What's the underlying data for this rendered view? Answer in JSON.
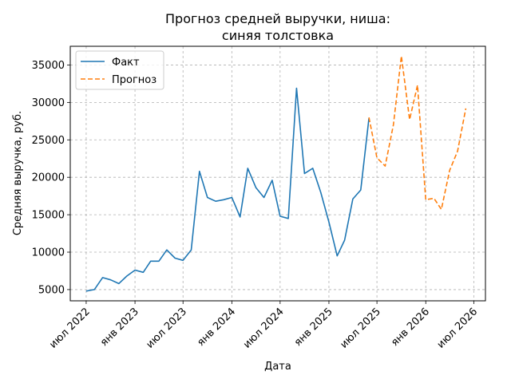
{
  "chart_data": {
    "type": "line",
    "title_line1": "Прогноз средней выручки, ниша:",
    "title_line2": "синяя толстовка",
    "xlabel": "Дата",
    "ylabel": "Средняя выручка, руб.",
    "xlim": [
      "2022-05-02",
      "2026-08-14"
    ],
    "ylim": [
      3500,
      37500
    ],
    "grid": true,
    "legend_position": "upper-left",
    "x_ticks": [
      {
        "date": "2022-07-01",
        "label": "июл 2022"
      },
      {
        "date": "2023-01-01",
        "label": "янв 2023"
      },
      {
        "date": "2023-07-01",
        "label": "июл 2023"
      },
      {
        "date": "2024-01-01",
        "label": "янв 2024"
      },
      {
        "date": "2024-07-01",
        "label": "июл 2024"
      },
      {
        "date": "2025-01-01",
        "label": "янв 2025"
      },
      {
        "date": "2025-07-01",
        "label": "июл 2025"
      },
      {
        "date": "2026-01-01",
        "label": "янв 2026"
      },
      {
        "date": "2026-07-01",
        "label": "июл 2026"
      }
    ],
    "y_ticks": [
      5000,
      10000,
      15000,
      20000,
      25000,
      30000,
      35000
    ],
    "series": [
      {
        "name": "Факт",
        "color": "#1f77b4",
        "style": "solid",
        "points": [
          [
            "2022-07-01",
            4800
          ],
          [
            "2022-08-01",
            5000
          ],
          [
            "2022-09-01",
            6600
          ],
          [
            "2022-10-01",
            6300
          ],
          [
            "2022-11-01",
            5800
          ],
          [
            "2022-12-01",
            6800
          ],
          [
            "2023-01-01",
            7600
          ],
          [
            "2023-02-01",
            7300
          ],
          [
            "2023-03-01",
            8800
          ],
          [
            "2023-04-01",
            8800
          ],
          [
            "2023-05-01",
            10300
          ],
          [
            "2023-06-01",
            9200
          ],
          [
            "2023-07-01",
            8900
          ],
          [
            "2023-08-01",
            10300
          ],
          [
            "2023-09-01",
            20800
          ],
          [
            "2023-10-01",
            17300
          ],
          [
            "2023-11-01",
            16800
          ],
          [
            "2023-12-01",
            17000
          ],
          [
            "2024-01-01",
            17300
          ],
          [
            "2024-02-01",
            14700
          ],
          [
            "2024-03-01",
            21200
          ],
          [
            "2024-04-01",
            18600
          ],
          [
            "2024-05-01",
            17300
          ],
          [
            "2024-06-01",
            19600
          ],
          [
            "2024-07-01",
            14800
          ],
          [
            "2024-08-01",
            14500
          ],
          [
            "2024-09-01",
            31900
          ],
          [
            "2024-10-01",
            20500
          ],
          [
            "2024-11-01",
            21200
          ],
          [
            "2024-12-01",
            18000
          ],
          [
            "2025-01-01",
            14000
          ],
          [
            "2025-02-01",
            9500
          ],
          [
            "2025-03-01",
            11600
          ],
          [
            "2025-04-01",
            17100
          ],
          [
            "2025-05-01",
            18300
          ],
          [
            "2025-06-01",
            27900
          ]
        ]
      },
      {
        "name": "Прогноз",
        "color": "#ff7f0e",
        "style": "dashed",
        "points": [
          [
            "2025-06-01",
            28000
          ],
          [
            "2025-07-01",
            22600
          ],
          [
            "2025-08-01",
            21500
          ],
          [
            "2025-09-01",
            27000
          ],
          [
            "2025-10-01",
            36200
          ],
          [
            "2025-11-01",
            27700
          ],
          [
            "2025-12-01",
            32300
          ],
          [
            "2026-01-01",
            17000
          ],
          [
            "2026-02-01",
            17200
          ],
          [
            "2026-03-01",
            15700
          ],
          [
            "2026-04-01",
            20900
          ],
          [
            "2026-05-01",
            23500
          ],
          [
            "2026-06-01",
            29200
          ]
        ]
      }
    ]
  }
}
